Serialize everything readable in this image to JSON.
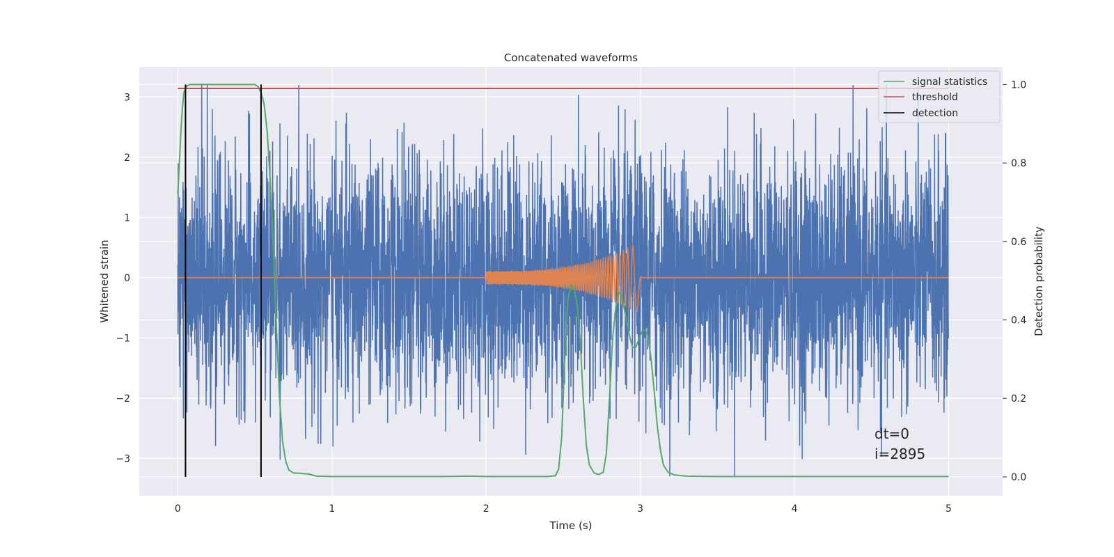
{
  "chart_data": {
    "type": "line",
    "title": "Concatenated waveforms",
    "xlabel": "Time (s)",
    "ylabel": "Whitened strain",
    "ylabel_right": "Detection probability",
    "xlim": [
      -0.25,
      5.35
    ],
    "ylim": [
      -3.62,
      3.5
    ],
    "ylim_right": [
      -0.048,
      1.045
    ],
    "x_ticks": [
      0,
      1,
      2,
      3,
      4,
      5
    ],
    "x_tick_labels": [
      "0",
      "1",
      "2",
      "3",
      "4",
      "5"
    ],
    "y_ticks": [
      -3,
      -2,
      -1,
      0,
      1,
      2,
      3
    ],
    "y_tick_labels": [
      "−3",
      "−2",
      "−1",
      "0",
      "1",
      "2",
      "3"
    ],
    "y_right_ticks": [
      0.0,
      0.2,
      0.4,
      0.6,
      0.8,
      1.0
    ],
    "y_right_tick_labels": [
      "0.0",
      "0.2",
      "0.4",
      "0.6",
      "0.8",
      "1.0"
    ],
    "grid": true,
    "legend_position": "upper-right",
    "series": [
      {
        "name": "",
        "axis": "left",
        "color": "#4c72b0",
        "kind": "noise",
        "x_range": [
          0,
          5
        ],
        "sample_step": 0.00125,
        "amplitude_std": 1.0
      },
      {
        "name": "",
        "axis": "left",
        "color": "#dd8452",
        "kind": "chirp",
        "x_range": [
          0,
          5
        ],
        "chirp_start": 2.0,
        "chirp_end": 3.0,
        "amplitude_start": 0.1,
        "amplitude_peak": 0.6,
        "cycles": 95
      },
      {
        "name": "signal statistics",
        "axis": "right",
        "color": "#55a868",
        "points": [
          [
            0.0,
            0.72
          ],
          [
            0.01,
            0.8
          ],
          [
            0.02,
            0.88
          ],
          [
            0.03,
            0.94
          ],
          [
            0.04,
            0.98
          ],
          [
            0.06,
            0.997
          ],
          [
            0.08,
            1.0
          ],
          [
            0.5,
            1.0
          ],
          [
            0.52,
            0.995
          ],
          [
            0.54,
            0.98
          ],
          [
            0.56,
            0.95
          ],
          [
            0.58,
            0.88
          ],
          [
            0.6,
            0.75
          ],
          [
            0.62,
            0.58
          ],
          [
            0.64,
            0.38
          ],
          [
            0.66,
            0.2
          ],
          [
            0.68,
            0.09
          ],
          [
            0.7,
            0.04
          ],
          [
            0.72,
            0.018
          ],
          [
            0.75,
            0.01
          ],
          [
            0.8,
            0.009
          ],
          [
            0.85,
            0.007
          ],
          [
            0.9,
            0.002
          ],
          [
            1.0,
            0.001
          ],
          [
            1.5,
            0.001
          ],
          [
            1.7,
            0.001
          ],
          [
            1.9,
            0.002
          ],
          [
            2.0,
            0.001
          ],
          [
            2.4,
            0.001
          ],
          [
            2.45,
            0.003
          ],
          [
            2.47,
            0.02
          ],
          [
            2.49,
            0.1
          ],
          [
            2.51,
            0.3
          ],
          [
            2.53,
            0.45
          ],
          [
            2.55,
            0.49
          ],
          [
            2.57,
            0.48
          ],
          [
            2.59,
            0.44
          ],
          [
            2.61,
            0.35
          ],
          [
            2.63,
            0.2
          ],
          [
            2.65,
            0.08
          ],
          [
            2.67,
            0.03
          ],
          [
            2.7,
            0.01
          ],
          [
            2.73,
            0.006
          ],
          [
            2.76,
            0.012
          ],
          [
            2.78,
            0.06
          ],
          [
            2.8,
            0.2
          ],
          [
            2.82,
            0.35
          ],
          [
            2.84,
            0.43
          ],
          [
            2.86,
            0.47
          ],
          [
            2.88,
            0.46
          ],
          [
            2.9,
            0.42
          ],
          [
            2.93,
            0.36
          ],
          [
            2.95,
            0.33
          ],
          [
            2.97,
            0.33
          ],
          [
            2.99,
            0.35
          ],
          [
            3.01,
            0.37
          ],
          [
            3.03,
            0.375
          ],
          [
            3.05,
            0.36
          ],
          [
            3.07,
            0.3
          ],
          [
            3.09,
            0.22
          ],
          [
            3.11,
            0.13
          ],
          [
            3.13,
            0.07
          ],
          [
            3.15,
            0.03
          ],
          [
            3.18,
            0.012
          ],
          [
            3.22,
            0.005
          ],
          [
            3.3,
            0.002
          ],
          [
            3.5,
            0.001
          ],
          [
            4.0,
            0.001
          ],
          [
            4.5,
            0.001
          ],
          [
            5.0,
            0.001
          ]
        ]
      },
      {
        "name": "threshold",
        "axis": "right",
        "color": "#c44e52",
        "points": [
          [
            0.0,
            0.99
          ],
          [
            5.0,
            0.99
          ]
        ]
      },
      {
        "name": "detection",
        "axis": "right",
        "color": "#000000",
        "vlines": [
          0.05,
          0.54
        ],
        "vline_range": [
          0.0,
          1.0
        ]
      }
    ],
    "annotations": [
      "dt=0",
      "i=2895"
    ]
  }
}
